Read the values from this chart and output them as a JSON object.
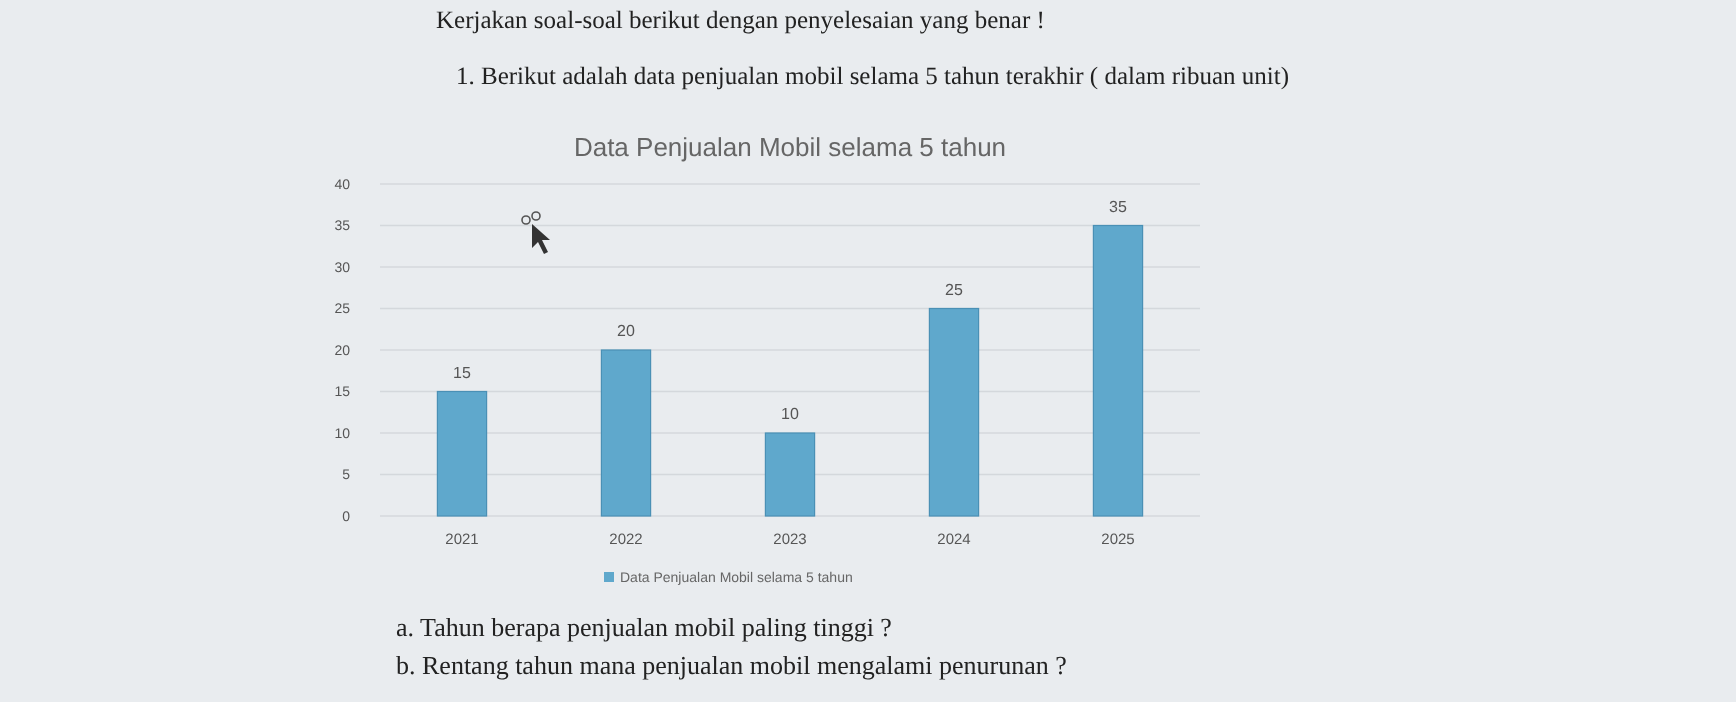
{
  "chart_data": {
    "type": "bar",
    "title": "Data Penjualan Mobil selama 5 tahun",
    "annotations": [
      "Kerjakan soal-soal berikut dengan penyelesaian yang benar !",
      "1.   Berikut adalah data penjualan mobil selama 5 tahun terakhir ( dalam ribuan unit)",
      "a.   Tahun berapa penjualan mobil paling tinggi ?",
      "b.   Rentang tahun mana penjualan mobil mengalami penurunan ?"
    ],
    "categories": [
      "2021",
      "2022",
      "2023",
      "2024",
      "2025"
    ],
    "series": [
      {
        "name": "Data Penjualan Mobil selama 5 tahun",
        "color": "#5fa8cc",
        "values": [
          15,
          20,
          10,
          25,
          35
        ]
      }
    ],
    "ylim": [
      0,
      40
    ],
    "yticks": [
      0,
      5,
      10,
      15,
      20,
      25,
      30,
      35,
      40
    ],
    "grid": "y",
    "legend": "bottom",
    "data_labels": true
  }
}
